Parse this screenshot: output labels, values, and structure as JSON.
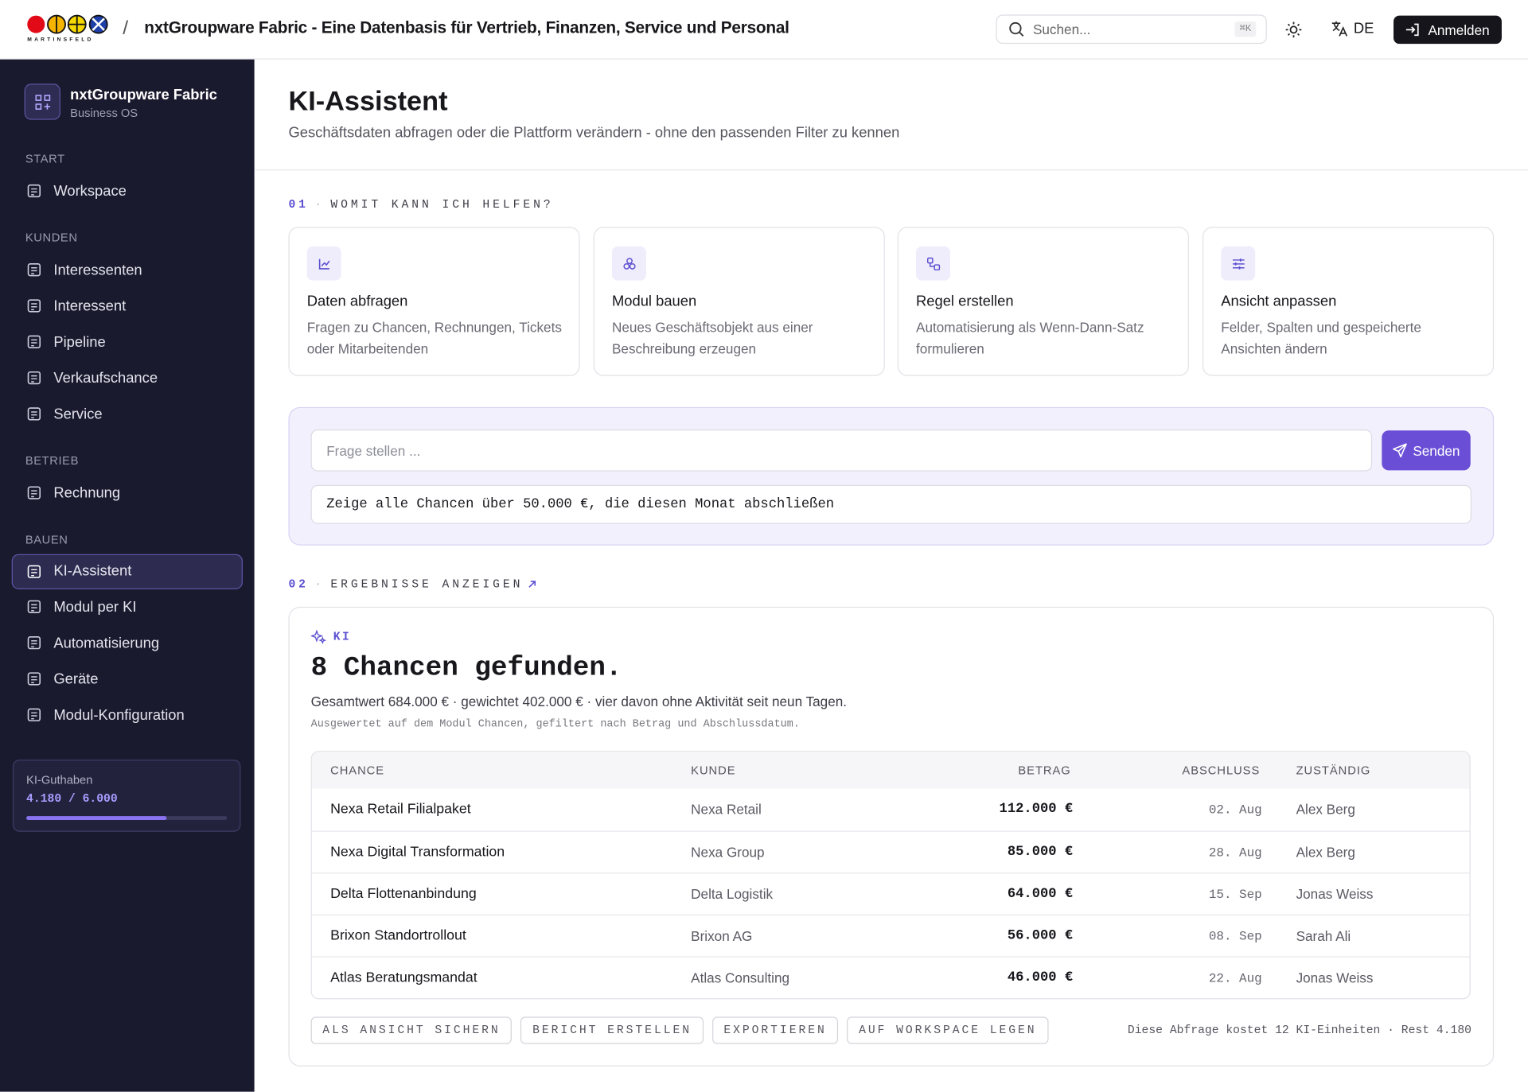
{
  "header": {
    "brand": "MARTINSFELD",
    "separator": "/",
    "title": "nxtGroupware Fabric - Eine Datenbasis für Vertrieb, Finanzen, Service und Personal",
    "search_placeholder": "Suchen...",
    "search_shortcut": "⌘K",
    "language": "DE",
    "login": "Anmelden"
  },
  "sidebar": {
    "app_name": "nxtGroupware Fabric",
    "app_subtitle": "Business OS",
    "sections": [
      {
        "title": "START",
        "items": [
          {
            "label": "Workspace"
          }
        ]
      },
      {
        "title": "KUNDEN",
        "items": [
          {
            "label": "Interessenten"
          },
          {
            "label": "Interessent"
          },
          {
            "label": "Pipeline"
          },
          {
            "label": "Verkaufschance"
          },
          {
            "label": "Service"
          }
        ]
      },
      {
        "title": "BETRIEB",
        "items": [
          {
            "label": "Rechnung"
          }
        ]
      },
      {
        "title": "BAUEN",
        "items": [
          {
            "label": "KI-Assistent",
            "active": true
          },
          {
            "label": "Modul per KI"
          },
          {
            "label": "Automatisierung"
          },
          {
            "label": "Geräte"
          },
          {
            "label": "Modul-Konfiguration"
          }
        ]
      }
    ],
    "credit": {
      "label": "KI-Guthaben",
      "value": "4.180 / 6.000"
    }
  },
  "page": {
    "title": "KI-Assistent",
    "subtitle": "Geschäftsdaten abfragen oder die Plattform verändern - ohne den passenden Filter zu kennen"
  },
  "help": {
    "number": "01",
    "separator": "·",
    "title": "WOMIT KANN ICH HELFEN?",
    "cards": [
      {
        "title": "Daten abfragen",
        "description": "Fragen zu Chancen, Rechnungen, Tickets oder Mitarbeitenden"
      },
      {
        "title": "Modul bauen",
        "description": "Neues Geschäftsobjekt aus einer Beschreibung erzeugen"
      },
      {
        "title": "Regel erstellen",
        "description": "Automatisierung als Wenn-Dann-Satz formulieren"
      },
      {
        "title": "Ansicht anpassen",
        "description": "Felder, Spalten und gespeicherte Ansichten ändern"
      }
    ]
  },
  "query": {
    "placeholder": "Frage stellen ...",
    "send": "Senden",
    "suggestion": "Zeige alle Chancen über 50.000 €, die diesen Monat abschließen"
  },
  "results": {
    "number": "02",
    "separator": "·",
    "title": "ERGEBNISSE ANZEIGEN",
    "badge": "KI",
    "heading": "8 Chancen gefunden.",
    "summary": "Gesamtwert 684.000 € · gewichtet 402.000 € · vier davon ohne Aktivität seit neun Tagen.",
    "note": "Ausgewertet auf dem Modul Chancen, gefiltert nach Betrag und Abschlussdatum.",
    "table": {
      "columns": [
        "CHANCE",
        "KUNDE",
        "BETRAG",
        "ABSCHLUSS",
        "ZUSTÄNDIG"
      ],
      "rows": [
        [
          "Nexa Retail Filialpaket",
          "Nexa Retail",
          "112.000 €",
          "02. Aug",
          "Alex Berg"
        ],
        [
          "Nexa Digital Transformation",
          "Nexa Group",
          "85.000 €",
          "28. Aug",
          "Alex Berg"
        ],
        [
          "Delta Flottenanbindung",
          "Delta Logistik",
          "64.000 €",
          "15. Sep",
          "Jonas Weiss"
        ],
        [
          "Brixon Standortrollout",
          "Brixon AG",
          "56.000 €",
          "08. Sep",
          "Sarah Ali"
        ],
        [
          "Atlas Beratungsmandat",
          "Atlas Consulting",
          "46.000 €",
          "22. Aug",
          "Jonas Weiss"
        ]
      ]
    },
    "actions": [
      "ALS ANSICHT SICHERN",
      "BERICHT ERSTELLEN",
      "EXPORTIEREN",
      "AUF WORKSPACE LEGEN"
    ],
    "cost": "Diese Abfrage kostet 12 KI-Einheiten · Rest 4.180"
  }
}
